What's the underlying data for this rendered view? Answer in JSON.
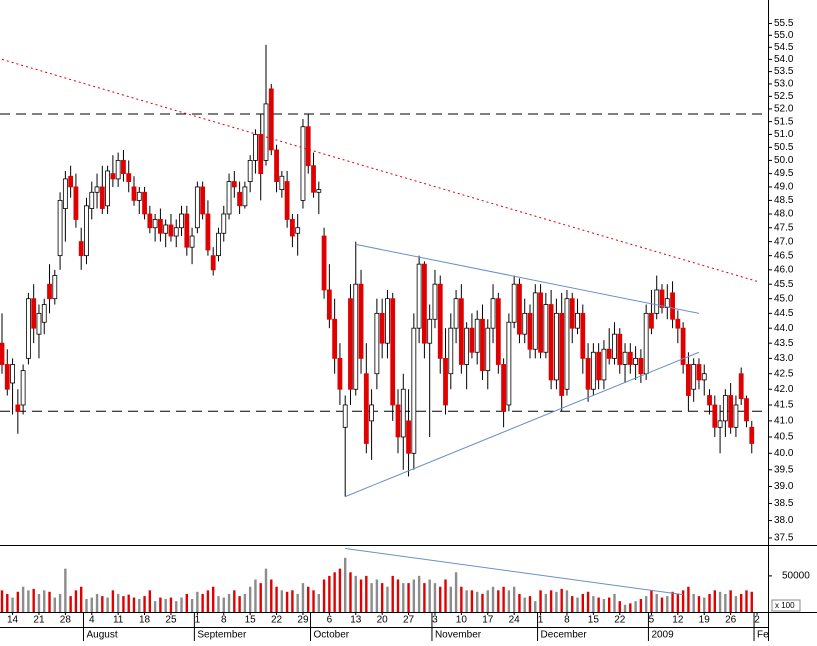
{
  "chart_data": {
    "type": "candlestick",
    "log_scale": true,
    "up_color": "#ffffff",
    "down_color": "#e00000",
    "volume_up_color": "#8c8c8c",
    "volume_down_color": "#e00000",
    "categories": [
      null,
      null,
      "14",
      null,
      null,
      null,
      null,
      "21",
      null,
      null,
      null,
      null,
      "28",
      null,
      null,
      null,
      null,
      "4",
      null,
      null,
      null,
      null,
      "11",
      null,
      null,
      null,
      null,
      "18",
      null,
      null,
      null,
      null,
      "25",
      null,
      null,
      null,
      null,
      "1",
      null,
      null,
      null,
      null,
      "8",
      null,
      null,
      null,
      null,
      "15",
      null,
      null,
      null,
      null,
      "22",
      null,
      null,
      null,
      null,
      "29",
      null,
      null,
      null,
      null,
      "6",
      null,
      null,
      null,
      null,
      "13",
      null,
      null,
      null,
      null,
      "20",
      null,
      null,
      null,
      null,
      "27",
      null,
      null,
      null,
      null,
      "3",
      null,
      null,
      null,
      null,
      "10",
      null,
      null,
      null,
      null,
      "17",
      null,
      null,
      null,
      null,
      "24",
      null,
      null,
      null,
      null,
      "1",
      null,
      null,
      null,
      null,
      "8",
      null,
      null,
      null,
      null,
      "15",
      null,
      null,
      null,
      null,
      "22",
      null,
      null,
      null,
      null,
      null,
      "5",
      null,
      null,
      null,
      null,
      "12",
      null,
      null,
      null,
      null,
      "19",
      null,
      null,
      null,
      null,
      "26",
      null,
      null,
      null,
      null,
      "2"
    ],
    "months": [
      null,
      null,
      null,
      null,
      null,
      null,
      null,
      null,
      null,
      null,
      null,
      null,
      null,
      null,
      null,
      null,
      "August",
      null,
      null,
      null,
      null,
      null,
      null,
      null,
      null,
      null,
      null,
      null,
      null,
      null,
      null,
      null,
      null,
      null,
      null,
      null,
      null,
      "September",
      null,
      null,
      null,
      null,
      null,
      null,
      null,
      null,
      null,
      null,
      null,
      null,
      null,
      null,
      null,
      null,
      null,
      null,
      null,
      null,
      null,
      "October",
      null,
      null,
      null,
      null,
      null,
      null,
      null,
      null,
      null,
      null,
      null,
      null,
      null,
      null,
      null,
      null,
      null,
      null,
      null,
      null,
      null,
      null,
      "November",
      null,
      null,
      null,
      null,
      null,
      null,
      null,
      null,
      null,
      null,
      null,
      null,
      null,
      null,
      null,
      null,
      null,
      null,
      null,
      "December",
      null,
      null,
      null,
      null,
      null,
      null,
      null,
      null,
      null,
      null,
      null,
      null,
      null,
      null,
      null,
      null,
      null,
      null,
      null,
      null,
      "2009",
      null,
      null,
      null,
      null,
      null,
      null,
      null,
      null,
      null,
      null,
      null,
      null,
      null,
      null,
      null,
      null,
      null,
      null,
      null,
      "Fe"
    ],
    "open": [
      43.5,
      42.8,
      42.2,
      41.5,
      41.5,
      43.0,
      45.0,
      43.8,
      44.2,
      45.5,
      45.0,
      46.5,
      48.2,
      49.4,
      49.0,
      47.0,
      46.5,
      48.2,
      48.8,
      49.0,
      48.3,
      49.5,
      49.3,
      50.0,
      49.5,
      49.0,
      48.5,
      48.8,
      48.0,
      47.5,
      47.8,
      47.3,
      47.6,
      47.2,
      47.5,
      48.0,
      46.8,
      47.5,
      49.0,
      48.0,
      46.5,
      46.5,
      47.3,
      48.0,
      49.2,
      48.8,
      48.3,
      49.2,
      50.0,
      51.0,
      50.0,
      52.8,
      50.4,
      48.9,
      49.2,
      47.8,
      47.3,
      48.5,
      51.3,
      49.8,
      48.8,
      47.2,
      45.3,
      44.3,
      43.0,
      40.8,
      45.0,
      42.0,
      45.5,
      42.5,
      41.0,
      42.5,
      44.5,
      43.5,
      45.0,
      41.5,
      40.5,
      41.0,
      40.0,
      44.0,
      46.2,
      43.5,
      44.3,
      45.5,
      43.0,
      42.5,
      44.0,
      45.0,
      42.8,
      44.0,
      43.2,
      44.3,
      42.6,
      44.0,
      45.0,
      42.8,
      41.5,
      44.2,
      45.5,
      43.8,
      44.5,
      43.3,
      45.2,
      43.2,
      44.8,
      42.3,
      44.5,
      42.0,
      45.0,
      44.0,
      44.5,
      43.0,
      42.0,
      43.2,
      42.3,
      43.3,
      43.0,
      43.8,
      42.8,
      43.2,
      42.8,
      43.0,
      42.5,
      44.5,
      44.5,
      45.3,
      44.7,
      45.2,
      44.3,
      44.0,
      42.8,
      42.0,
      42.8,
      42.3,
      41.8,
      41.5,
      40.8,
      41.0,
      41.8,
      40.8,
      42.5,
      41.7,
      40.8,
      null
    ],
    "high": [
      44.5,
      43.3,
      43.0,
      42.0,
      42.8,
      45.2,
      45.5,
      44.8,
      45.0,
      46.2,
      46.0,
      48.8,
      49.6,
      49.8,
      49.5,
      47.5,
      48.6,
      49.2,
      49.5,
      49.8,
      49.8,
      50.2,
      50.3,
      50.4,
      50.0,
      49.4,
      49.0,
      49.0,
      48.3,
      48.0,
      48.2,
      47.8,
      48.0,
      47.8,
      48.3,
      48.3,
      47.5,
      49.2,
      49.2,
      48.5,
      46.8,
      47.5,
      48.3,
      49.5,
      49.6,
      49.2,
      49.2,
      50.2,
      51.2,
      51.8,
      54.6,
      53.0,
      50.6,
      49.6,
      49.6,
      48.0,
      48.0,
      51.6,
      51.8,
      50.3,
      49.2,
      47.5,
      46.2,
      45.0,
      43.5,
      41.8,
      45.5,
      47.0,
      46.0,
      43.5,
      42.0,
      45.0,
      45.0,
      45.3,
      45.2,
      42.0,
      42.5,
      42.0,
      44.5,
      46.5,
      46.3,
      44.8,
      46.0,
      45.8,
      44.0,
      44.5,
      45.3,
      45.5,
      44.2,
      44.5,
      44.6,
      44.8,
      44.3,
      45.5,
      45.2,
      43.0,
      44.5,
      45.8,
      45.7,
      45.0,
      44.8,
      45.5,
      45.5,
      45.2,
      45.3,
      45.0,
      45.2,
      45.3,
      45.2,
      45.0,
      44.8,
      43.5,
      43.5,
      43.5,
      43.6,
      44.0,
      44.2,
      44.0,
      43.5,
      43.5,
      43.4,
      43.3,
      44.8,
      45.3,
      45.8,
      45.5,
      45.5,
      45.6,
      44.6,
      44.2,
      43.2,
      43.0,
      43.0,
      42.8,
      42.0,
      41.8,
      41.5,
      42.0,
      42.2,
      41.8,
      42.7,
      41.8,
      41.0,
      null
    ],
    "low": [
      42.5,
      41.8,
      41.2,
      40.6,
      41.2,
      42.8,
      43.5,
      43.0,
      43.8,
      44.5,
      44.8,
      46.0,
      47.0,
      48.6,
      47.5,
      46.0,
      46.2,
      47.8,
      48.2,
      48.0,
      48.0,
      49.0,
      49.0,
      49.2,
      48.8,
      48.3,
      48.0,
      47.8,
      47.3,
      47.0,
      47.0,
      46.8,
      47.0,
      46.8,
      47.2,
      46.5,
      46.2,
      47.3,
      47.8,
      46.5,
      45.8,
      46.3,
      47.0,
      47.8,
      48.6,
      48.0,
      48.2,
      48.8,
      49.5,
      48.5,
      49.8,
      50.2,
      48.8,
      48.6,
      47.5,
      46.8,
      46.5,
      48.2,
      49.5,
      48.6,
      48.0,
      45.0,
      44.0,
      42.5,
      41.5,
      38.7,
      41.5,
      41.8,
      42.5,
      40.0,
      39.8,
      42.0,
      43.0,
      43.0,
      41.0,
      40.0,
      39.5,
      39.3,
      39.5,
      43.5,
      43.0,
      40.5,
      44.0,
      42.5,
      41.2,
      42.0,
      43.5,
      42.5,
      42.0,
      43.0,
      42.8,
      42.3,
      42.0,
      43.5,
      42.5,
      40.8,
      41.3,
      44.0,
      43.5,
      43.5,
      43.0,
      43.0,
      43.0,
      43.0,
      42.0,
      42.0,
      41.3,
      41.8,
      43.5,
      43.8,
      42.5,
      41.6,
      41.8,
      42.0,
      42.0,
      42.8,
      42.8,
      42.5,
      42.2,
      42.5,
      42.3,
      42.2,
      42.3,
      43.8,
      44.3,
      44.5,
      44.3,
      44.0,
      43.5,
      42.5,
      41.3,
      41.6,
      42.0,
      41.8,
      41.2,
      40.5,
      40.0,
      40.5,
      40.6,
      40.5,
      41.5,
      40.8,
      40.0,
      null
    ],
    "close": [
      42.8,
      42.0,
      42.8,
      41.3,
      42.6,
      45.0,
      44.0,
      44.5,
      44.8,
      45.0,
      45.8,
      48.5,
      49.3,
      49.0,
      47.8,
      46.5,
      48.3,
      48.8,
      49.0,
      48.2,
      49.6,
      49.3,
      50.0,
      49.5,
      49.2,
      48.5,
      48.8,
      48.0,
      47.5,
      47.8,
      47.3,
      47.6,
      47.2,
      47.5,
      48.0,
      46.8,
      47.2,
      49.0,
      48.0,
      46.7,
      46.0,
      47.3,
      48.0,
      49.2,
      49.0,
      48.3,
      49.0,
      50.0,
      51.0,
      49.5,
      52.2,
      50.4,
      49.2,
      49.4,
      47.8,
      47.2,
      47.5,
      51.3,
      49.8,
      48.8,
      48.9,
      45.3,
      44.3,
      43.0,
      42.0,
      41.5,
      42.0,
      45.5,
      43.0,
      40.3,
      41.5,
      44.5,
      43.5,
      45.0,
      41.5,
      40.5,
      42.0,
      40.0,
      44.0,
      46.2,
      43.5,
      44.3,
      45.5,
      43.0,
      41.5,
      44.0,
      45.0,
      42.8,
      44.0,
      43.2,
      44.3,
      42.6,
      44.0,
      45.0,
      42.8,
      41.3,
      44.2,
      45.5,
      43.8,
      44.5,
      43.3,
      45.2,
      43.2,
      44.8,
      42.3,
      44.5,
      41.8,
      45.0,
      44.0,
      44.5,
      43.0,
      42.0,
      43.2,
      42.3,
      43.3,
      43.0,
      43.8,
      42.8,
      43.2,
      42.8,
      43.0,
      42.5,
      44.5,
      44.0,
      45.3,
      44.7,
      45.0,
      44.3,
      44.0,
      42.8,
      41.8,
      42.8,
      42.3,
      42.5,
      41.5,
      40.8,
      41.0,
      41.8,
      40.8,
      41.5,
      41.7,
      41.0,
      40.3,
      null
    ],
    "volume": [
      30000,
      25000,
      20000,
      28000,
      35000,
      30000,
      32000,
      25000,
      30000,
      28000,
      20000,
      25000,
      60000,
      22000,
      30000,
      35000,
      18000,
      20000,
      25000,
      22000,
      20000,
      30000,
      25000,
      22000,
      24000,
      20000,
      18000,
      22000,
      30000,
      15000,
      20000,
      18000,
      20000,
      15000,
      20000,
      25000,
      18000,
      28000,
      25000,
      30000,
      35000,
      22000,
      20000,
      25000,
      30000,
      22000,
      25000,
      35000,
      45000,
      40000,
      60000,
      45000,
      35000,
      30000,
      28000,
      30000,
      25000,
      40000,
      35000,
      30000,
      25000,
      45000,
      50000,
      55000,
      60000,
      75000,
      55000,
      50000,
      45000,
      50000,
      40000,
      45000,
      40000,
      35000,
      50000,
      45000,
      40000,
      40000,
      45000,
      50000,
      40000,
      45000,
      40000,
      35000,
      45000,
      35000,
      55000,
      35000,
      30000,
      30000,
      28000,
      25000,
      30000,
      35000,
      30000,
      35000,
      30000,
      35000,
      25000,
      20000,
      22000,
      15000,
      30000,
      25000,
      30000,
      28000,
      32000,
      30000,
      22000,
      20000,
      25000,
      28000,
      22000,
      20000,
      18000,
      20000,
      25000,
      15000,
      10000,
      12000,
      15000,
      18000,
      22000,
      30000,
      25000,
      20000,
      22000,
      28000,
      25000,
      30000,
      35000,
      25000,
      22000,
      20000,
      25000,
      30000,
      28000,
      25000,
      30000,
      22000,
      25000,
      30000,
      28000,
      null
    ],
    "ylim": [
      37.3,
      56.5
    ],
    "yticks": [
      {
        "value": 37.5,
        "label": "37.5"
      },
      {
        "value": 38,
        "label": "38.0"
      },
      38.5,
      {
        "value": 39,
        "label": "39.0"
      },
      39.5,
      {
        "value": 40,
        "label": "40.0"
      },
      40.5,
      {
        "value": 41,
        "label": "41.0"
      },
      41.5,
      {
        "value": 42,
        "label": "42.0"
      },
      42.5,
      {
        "value": 43,
        "label": "43.0"
      },
      43.5,
      {
        "value": 44,
        "label": "44.0"
      },
      44.5,
      {
        "value": 45,
        "label": "45.0"
      },
      45.5,
      {
        "value": 46,
        "label": "46.0"
      },
      46.5,
      {
        "value": 47,
        "label": "47.0"
      },
      47.5,
      {
        "value": 48,
        "label": "48.0"
      },
      48.5,
      {
        "value": 49,
        "label": "49.0"
      },
      49.5,
      {
        "value": 50,
        "label": "50.0"
      },
      50.5,
      {
        "value": 51,
        "label": "51.0"
      },
      51.5,
      {
        "value": 52,
        "label": "52.0"
      },
      52.5,
      {
        "value": 53,
        "label": "53.0"
      },
      53.5,
      {
        "value": 54,
        "label": "54.0"
      },
      54.5,
      {
        "value": 55,
        "label": "55.0"
      },
      55.5
    ],
    "volume_lim": [
      0,
      90000
    ],
    "volume_ticks": [
      50000
    ],
    "volume_unit_label": "x 100",
    "trendlines": [
      {
        "from_index": 0,
        "from": 54.0,
        "to_index": 143,
        "to": 45.6,
        "color": "#e00000",
        "dashed": true
      },
      {
        "from_index": 67,
        "from": 46.9,
        "to_index": 132,
        "to": 44.5,
        "color": "#6b8fc9",
        "dashed": false
      },
      {
        "from_index": 65,
        "from": 38.7,
        "to_index": 132,
        "to": 43.2,
        "color": "#6b8fc9",
        "dashed": false
      }
    ],
    "levels": [
      {
        "value": 51.8,
        "color": "#000000"
      },
      {
        "value": 41.3,
        "color": "#000000"
      }
    ],
    "volume_trendline": {
      "from_index": 65,
      "from": 88000,
      "to_index": 129,
      "to": 24000,
      "color": "#6b8fc9"
    }
  }
}
